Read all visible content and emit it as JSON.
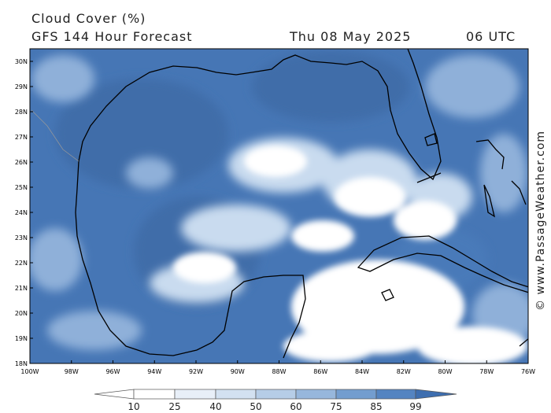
{
  "header": {
    "title": "Cloud Cover (%)",
    "subtitle": "GFS 144 Hour Forecast",
    "date": "Thu 08 May 2025",
    "time": "06 UTC"
  },
  "map": {
    "lat_labels": [
      "30N",
      "29N",
      "28N",
      "27N",
      "26N",
      "25N",
      "24N",
      "23N",
      "22N",
      "21N",
      "20N",
      "19N",
      "18N"
    ],
    "lon_labels": [
      "100W",
      "98W",
      "96W",
      "94W",
      "92W",
      "90W",
      "88W",
      "86W",
      "84W",
      "82W",
      "80W",
      "78W",
      "76W"
    ],
    "region": "Gulf of Mexico"
  },
  "legend": {
    "ticks": [
      "10",
      "25",
      "40",
      "50",
      "60",
      "75",
      "85",
      "99"
    ],
    "colors": [
      "#ffffff",
      "#e8eff8",
      "#d3e1f1",
      "#b6cde7",
      "#97b7dc",
      "#739dcf",
      "#5484c1",
      "#3e6eaf"
    ]
  },
  "colors": {
    "land_dark": "#3e6ca8",
    "cloud_high": "#5a88c4",
    "cloud_mid": "#9fbee0",
    "cloud_low": "#dbe7f4",
    "clear": "#ffffff"
  },
  "watermark": "© www.PassageWeather.com"
}
